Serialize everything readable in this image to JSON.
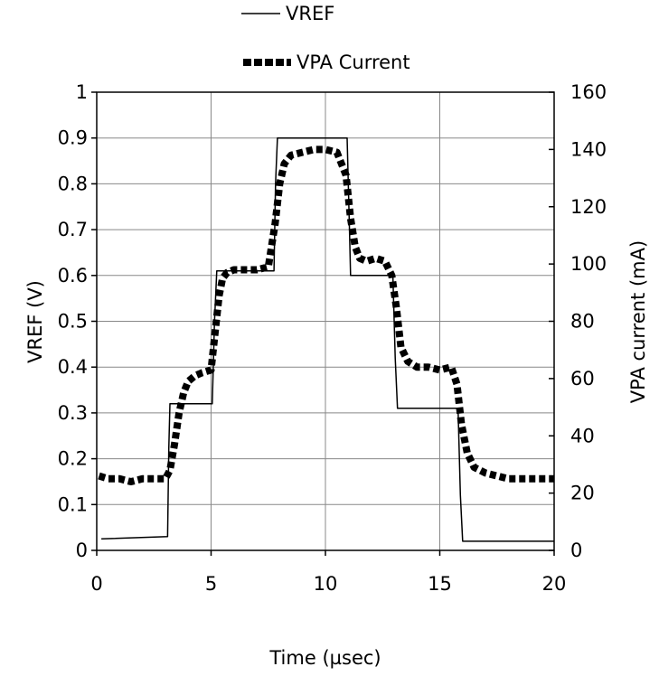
{
  "chart_data": {
    "type": "line",
    "title": "",
    "xlabel": "Time (µsec)",
    "ylabel_left": "VREF (V)",
    "ylabel_right": "VPA current (mA)",
    "xlim": [
      0,
      20
    ],
    "ylim_left": [
      0,
      1
    ],
    "ylim_right": [
      0,
      160
    ],
    "x_ticks": [
      "0",
      "5",
      "10",
      "15",
      "20"
    ],
    "y_ticks_left": [
      "0",
      "0.1",
      "0.2",
      "0.3",
      "0.4",
      "0.5",
      "0.6",
      "0.7",
      "0.8",
      "0.9",
      "1"
    ],
    "y_ticks_right": [
      "0",
      "20",
      "40",
      "60",
      "80",
      "100",
      "120",
      "140",
      "160"
    ],
    "grid": true,
    "legend_position": "top-center",
    "series": [
      {
        "name": "VREF",
        "axis": "left",
        "style": "thin-line",
        "color": "#000000",
        "x": [
          0.2,
          3.1,
          3.15,
          3.2,
          5.05,
          5.15,
          5.25,
          7.75,
          7.82,
          7.9,
          10.95,
          11.05,
          11.1,
          12.95,
          13.05,
          13.15,
          15.8,
          15.9,
          16.0,
          20.0
        ],
        "y": [
          0.025,
          0.03,
          0.22,
          0.32,
          0.32,
          0.5,
          0.61,
          0.61,
          0.8,
          0.9,
          0.9,
          0.7,
          0.6,
          0.6,
          0.42,
          0.31,
          0.31,
          0.12,
          0.02,
          0.02
        ]
      },
      {
        "name": "VPA Current",
        "axis": "right",
        "style": "thick-dashed",
        "color": "#000000",
        "x": [
          0.1,
          0.5,
          1.0,
          1.5,
          2.0,
          2.5,
          3.0,
          3.2,
          3.4,
          3.6,
          3.8,
          4.0,
          4.3,
          4.6,
          5.0,
          5.2,
          5.35,
          5.5,
          5.7,
          6.0,
          6.5,
          7.0,
          7.5,
          7.8,
          8.0,
          8.2,
          8.5,
          9.0,
          9.5,
          10.0,
          10.5,
          10.9,
          11.1,
          11.3,
          11.5,
          11.8,
          12.2,
          12.6,
          12.9,
          13.1,
          13.3,
          13.6,
          14.0,
          14.5,
          15.0,
          15.5,
          15.75,
          15.95,
          16.2,
          16.5,
          17.0,
          17.5,
          18.0,
          18.5,
          19.0,
          19.5,
          20.0
        ],
        "y": [
          26,
          25,
          25,
          24,
          25,
          25,
          25,
          28,
          37,
          48,
          55,
          59,
          61,
          62,
          63,
          78,
          89,
          95,
          97,
          98,
          98,
          98,
          99,
          114,
          128,
          135,
          138,
          139,
          140,
          140,
          139,
          131,
          116,
          106,
          102,
          101,
          102,
          101,
          96,
          85,
          71,
          66,
          64,
          64,
          63,
          64,
          58,
          44,
          34,
          29,
          27,
          26,
          25,
          25,
          25,
          25,
          25
        ]
      }
    ]
  }
}
